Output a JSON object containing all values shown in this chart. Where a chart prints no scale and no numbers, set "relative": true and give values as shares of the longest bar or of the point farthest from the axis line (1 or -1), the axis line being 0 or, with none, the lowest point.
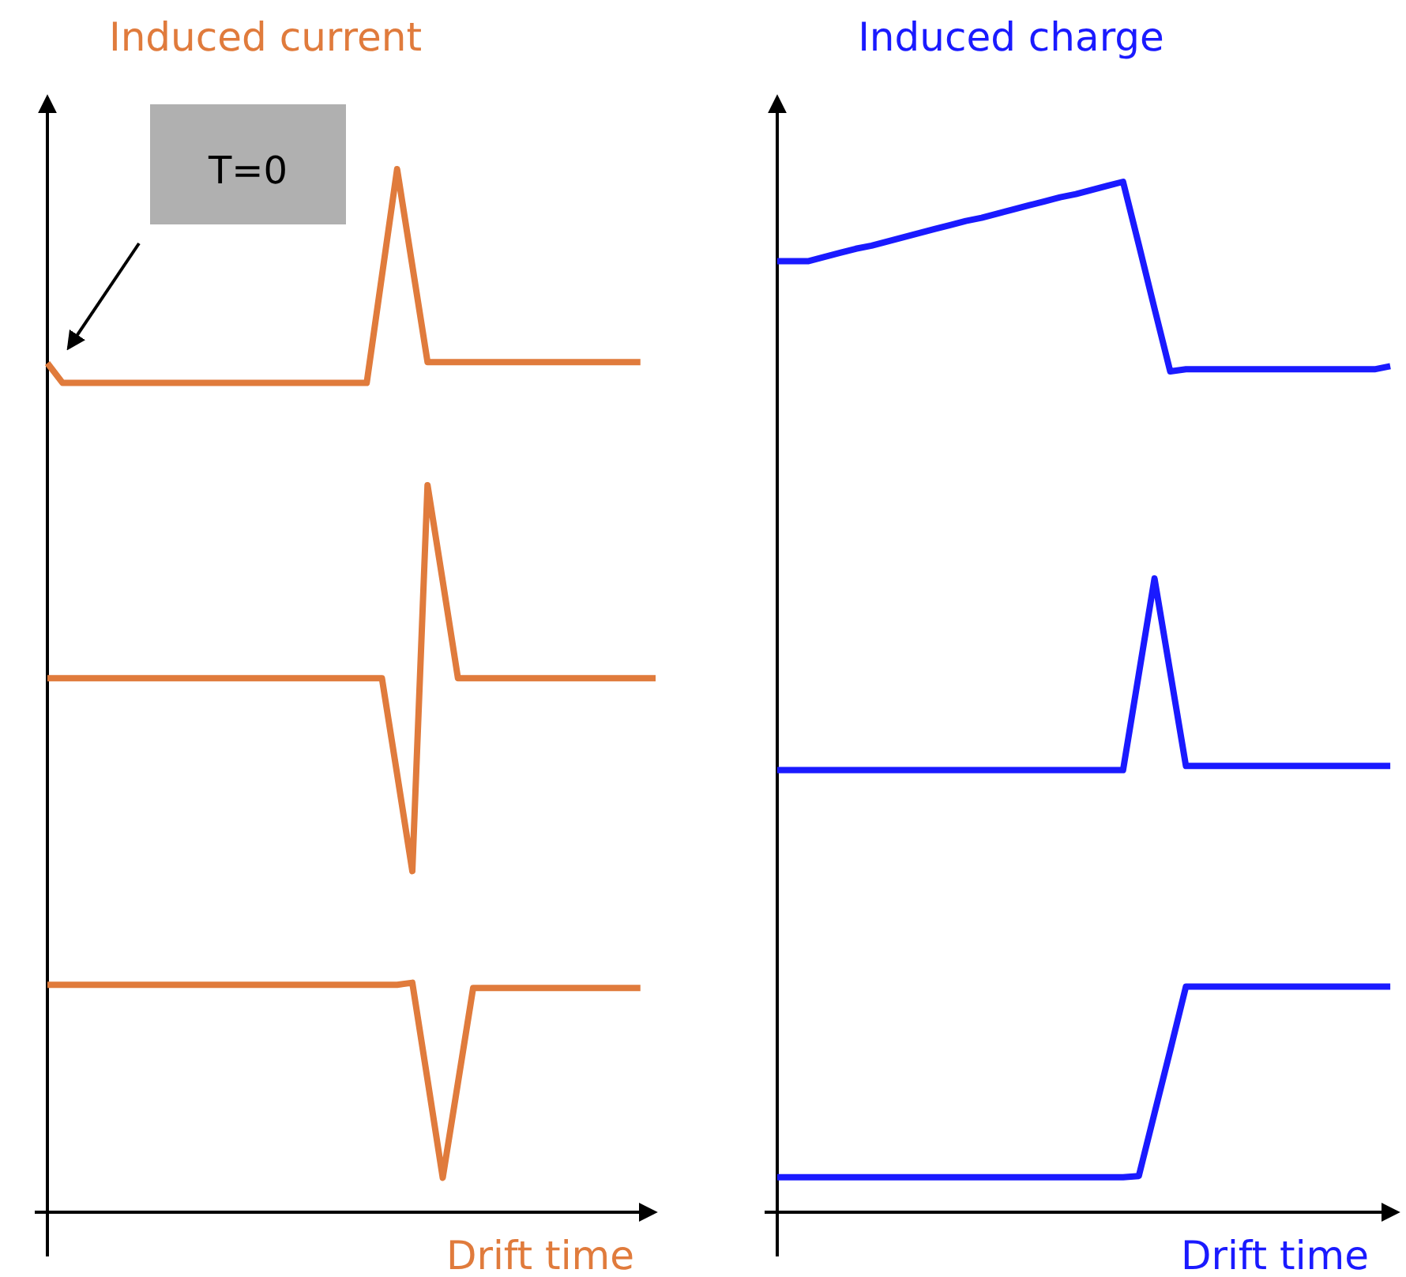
{
  "chart_data": [
    {
      "type": "line",
      "title": "Induced current",
      "xlabel": "Drift time",
      "relative": true,
      "marker": "none",
      "line_style": "solid",
      "annotations": [
        "T=0"
      ],
      "categories": [
        null,
        null,
        null,
        null,
        null,
        null,
        null,
        null,
        null,
        null,
        null,
        null,
        null,
        null,
        null,
        null,
        null,
        null,
        null,
        null,
        null,
        null,
        null,
        null,
        null,
        null,
        null,
        null,
        null,
        null,
        null,
        null,
        null,
        null,
        null,
        null,
        null,
        null,
        null,
        null,
        null
      ],
      "series": [
        {
          "color": "#e07b3c",
          "values": [
            0.814,
            0.795,
            0.795,
            0.795,
            0.795,
            0.795,
            0.795,
            0.795,
            0.795,
            0.795,
            0.795,
            0.795,
            0.795,
            0.795,
            0.795,
            0.795,
            0.795,
            0.795,
            0.795,
            0.795,
            0.795,
            0.795,
            0.8975,
            1.0,
            0.9075,
            0.815,
            0.815,
            0.815,
            0.815,
            0.815,
            0.815,
            0.815,
            0.815,
            0.815,
            0.815,
            0.815,
            0.815,
            0.815,
            0.815,
            0.815,
            null
          ]
        },
        {
          "color": "#e07b3c",
          "values": [
            0.512,
            0.512,
            0.512,
            0.512,
            0.512,
            0.512,
            0.512,
            0.512,
            0.512,
            0.512,
            0.512,
            0.512,
            0.512,
            0.512,
            0.512,
            0.512,
            0.512,
            0.512,
            0.512,
            0.512,
            0.512,
            0.512,
            0.512,
            0.42,
            0.327,
            0.697,
            0.605,
            0.512,
            0.512,
            0.512,
            0.512,
            0.512,
            0.512,
            0.512,
            0.512,
            0.512,
            0.512,
            0.512,
            0.512,
            0.512,
            0.512
          ]
        },
        {
          "color": "#e07b3c",
          "values": [
            0.218,
            0.218,
            0.218,
            0.218,
            0.218,
            0.218,
            0.218,
            0.218,
            0.218,
            0.218,
            0.218,
            0.218,
            0.218,
            0.218,
            0.218,
            0.218,
            0.218,
            0.218,
            0.218,
            0.218,
            0.218,
            0.218,
            0.218,
            0.218,
            0.22,
            0.127,
            0.033,
            0.124,
            0.215,
            0.215,
            0.215,
            0.215,
            0.215,
            0.215,
            0.215,
            0.215,
            0.215,
            0.215,
            0.215,
            0.215,
            null
          ]
        }
      ]
    },
    {
      "type": "line",
      "title": "Induced charge",
      "xlabel": "Drift time",
      "relative": true,
      "marker": "none",
      "line_style": "solid",
      "categories": [
        null,
        null,
        null,
        null,
        null,
        null,
        null,
        null,
        null,
        null,
        null,
        null,
        null,
        null,
        null,
        null,
        null,
        null,
        null,
        null,
        null,
        null,
        null,
        null,
        null,
        null,
        null,
        null,
        null,
        null,
        null,
        null,
        null,
        null,
        null,
        null,
        null,
        null,
        null,
        null,
        null
      ],
      "series": [
        {
          "color": "#1a1aff",
          "values": [
            0.923,
            0.923,
            0.923,
            0.927,
            0.931,
            0.935,
            0.938,
            0.942,
            0.946,
            0.95,
            0.954,
            0.958,
            0.962,
            0.965,
            0.969,
            0.973,
            0.977,
            0.981,
            0.985,
            0.988,
            0.992,
            0.996,
            1.0,
            0.939,
            0.877,
            0.816,
            0.818,
            0.818,
            0.818,
            0.818,
            0.818,
            0.818,
            0.818,
            0.818,
            0.818,
            0.818,
            0.818,
            0.818,
            0.818,
            0.821,
            null
          ]
        },
        {
          "color": "#1a1aff",
          "values": [
            0.429,
            0.429,
            0.429,
            0.429,
            0.429,
            0.429,
            0.429,
            0.429,
            0.429,
            0.429,
            0.429,
            0.429,
            0.429,
            0.429,
            0.429,
            0.429,
            0.429,
            0.429,
            0.429,
            0.429,
            0.429,
            0.429,
            0.429,
            0.522,
            0.615,
            0.524,
            0.433,
            0.433,
            0.433,
            0.433,
            0.433,
            0.433,
            0.433,
            0.433,
            0.433,
            0.433,
            0.433,
            0.433,
            0.433,
            0.433,
            null
          ]
        },
        {
          "color": "#1a1aff",
          "values": [
            0.034,
            0.034,
            0.034,
            0.034,
            0.034,
            0.034,
            0.034,
            0.034,
            0.034,
            0.034,
            0.034,
            0.034,
            0.034,
            0.034,
            0.034,
            0.034,
            0.034,
            0.034,
            0.034,
            0.034,
            0.034,
            0.034,
            0.034,
            0.035,
            0.096,
            0.157,
            0.219,
            0.219,
            0.219,
            0.219,
            0.219,
            0.219,
            0.219,
            0.219,
            0.219,
            0.219,
            0.219,
            0.219,
            0.219,
            0.219,
            null
          ]
        }
      ]
    }
  ]
}
